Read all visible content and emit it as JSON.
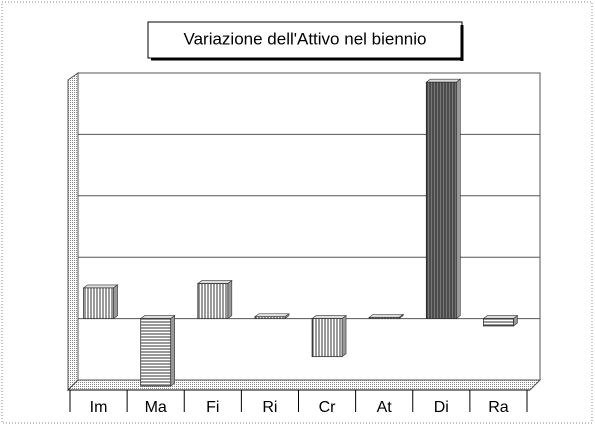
{
  "chart_data": {
    "type": "bar",
    "title": "Variazione dell'Attivo nel biennio",
    "categories": [
      "Im",
      "Ma",
      "Fi",
      "Ri",
      "Cr",
      "At",
      "Di",
      "Ra"
    ],
    "values": [
      0.5,
      -1.1,
      0.57,
      0.03,
      -0.62,
      0.02,
      3.85,
      -0.12
    ],
    "ylim": [
      -1,
      4
    ],
    "yticks": [
      -1,
      0,
      1,
      2,
      3,
      4
    ],
    "grid": true
  }
}
